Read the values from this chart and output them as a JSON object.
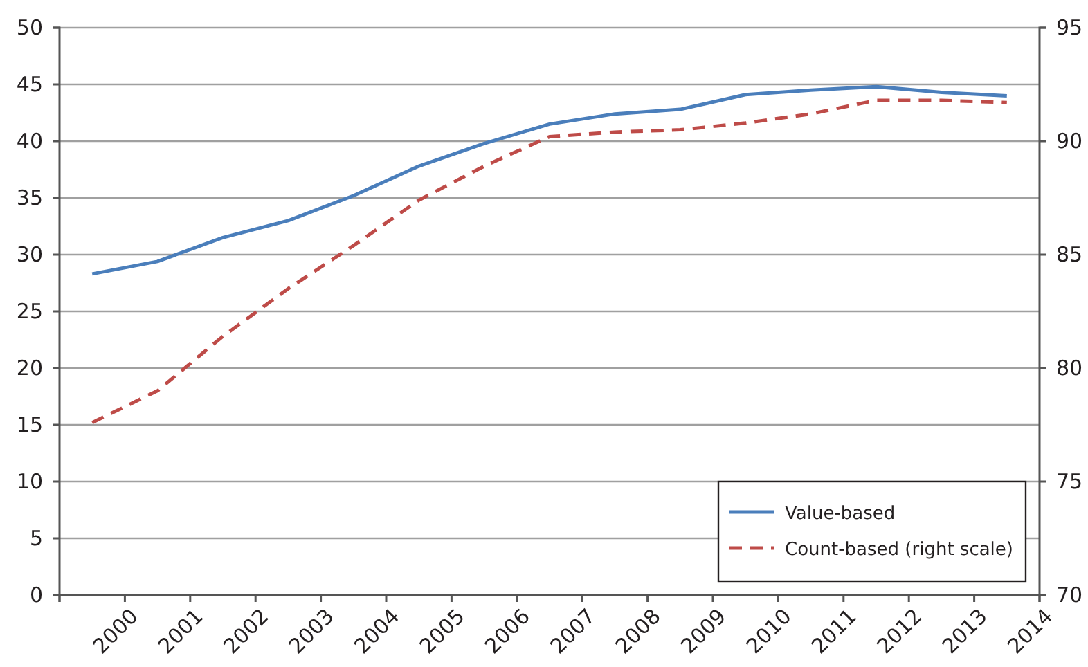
{
  "chart_data": {
    "type": "line",
    "x": [
      1999.5,
      2000.5,
      2001.5,
      2002.5,
      2003.5,
      2004.5,
      2005.5,
      2006.5,
      2007.5,
      2008.5,
      2009.5,
      2010.5,
      2011.5,
      2012.5,
      2013.5
    ],
    "xlim": [
      1999,
      2014
    ],
    "xticks": [
      {
        "value": 1999,
        "label": null
      },
      2000,
      2001,
      2002,
      2003,
      2004,
      2005,
      2006,
      2007,
      2008,
      2009,
      2010,
      2011,
      2012,
      2013,
      2014
    ],
    "ylim": [
      0,
      50
    ],
    "yticks": [
      0,
      5,
      10,
      15,
      20,
      25,
      30,
      35,
      40,
      45,
      50
    ],
    "y2lim": [
      70,
      95
    ],
    "y2ticks": [
      70,
      75,
      80,
      85,
      90,
      95
    ],
    "grid": "y",
    "legend": "bottom right",
    "series": [
      {
        "name": "Value-based",
        "color": "#4a7ebb",
        "line_style": "solid",
        "values": [
          28.3,
          29.4,
          31.5,
          33.0,
          35.2,
          37.8,
          39.8,
          41.5,
          42.4,
          42.8,
          44.1,
          44.5,
          44.8,
          44.3,
          44.0
        ]
      },
      {
        "name": "Count-based (right scale)",
        "color": "#be4b48",
        "line_style": "dashed",
        "axis": "y2",
        "values": [
          77.6,
          79.0,
          81.4,
          83.5,
          85.4,
          87.4,
          88.9,
          90.2,
          90.4,
          90.5,
          90.8,
          91.2,
          91.8,
          91.8,
          91.7
        ]
      }
    ]
  }
}
